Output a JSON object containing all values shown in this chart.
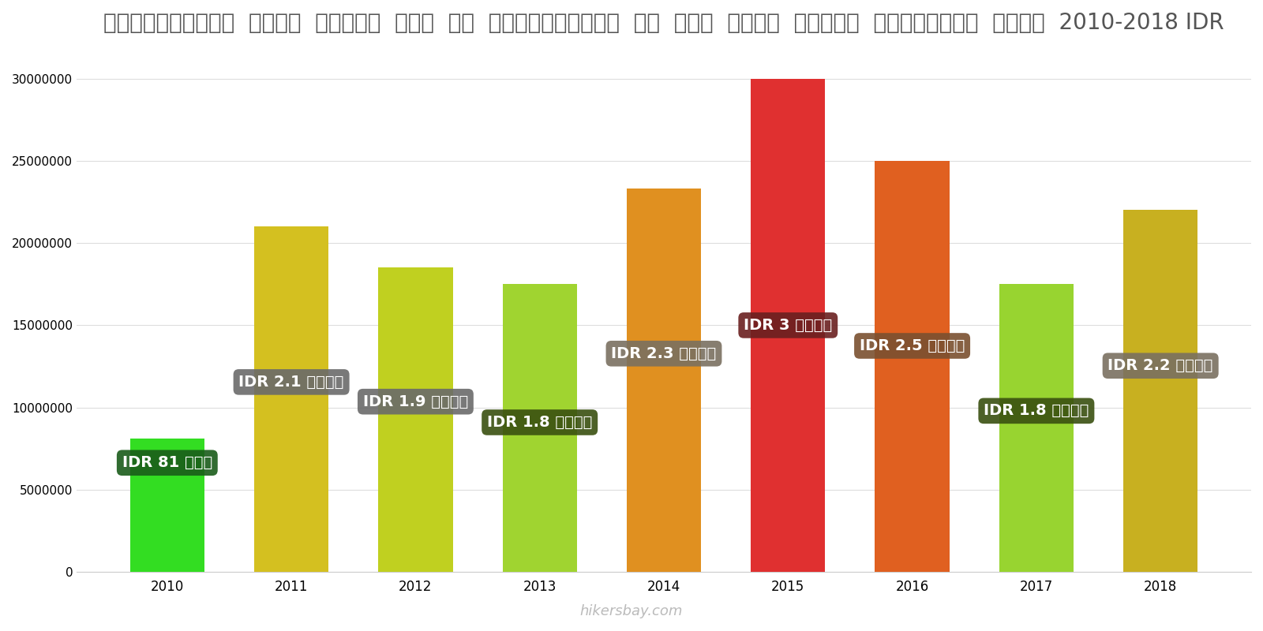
{
  "years": [
    2010,
    2011,
    2012,
    2013,
    2014,
    2015,
    2016,
    2017,
    2018
  ],
  "values": [
    8100000,
    21000000,
    18500000,
    17500000,
    23300000,
    30000000,
    25000000,
    17500000,
    22000000
  ],
  "bar_colors": [
    "#33dd22",
    "#d4c020",
    "#c0d020",
    "#a0d430",
    "#e09020",
    "#e03030",
    "#e06020",
    "#98d430",
    "#c8b020"
  ],
  "labels": [
    "IDR 81 लाख",
    "IDR 2.1 करो॰",
    "IDR 1.9 करो॰",
    "IDR 1.8 करो॰",
    "IDR 2.3 करो॰",
    "IDR 3 करो॰",
    "IDR 2.5 करो॰",
    "IDR 1.8 करो॰",
    "IDR 2.2 करो॰"
  ],
  "label_bg_colors": [
    "#1a5c1a",
    "#6a6a6a",
    "#6a6a6a",
    "#3a5010",
    "#7a7060",
    "#6a2020",
    "#7a5030",
    "#3a5010",
    "#7a7060"
  ],
  "label_y_fractions": [
    0.82,
    0.55,
    0.56,
    0.52,
    0.57,
    0.5,
    0.55,
    0.56,
    0.57
  ],
  "title": "इंडोनेशिया  सिटी  सेंटर  में  एक  अपार्टमेंट  के  लिए  कीमत  प्रति  स्क्वायर  मीटर  2010-2018 IDR",
  "ylim": [
    0,
    32000000
  ],
  "yticks": [
    0,
    5000000,
    10000000,
    15000000,
    20000000,
    25000000,
    30000000
  ],
  "watermark": "hikersbay.com",
  "bg_color": "#ffffff"
}
